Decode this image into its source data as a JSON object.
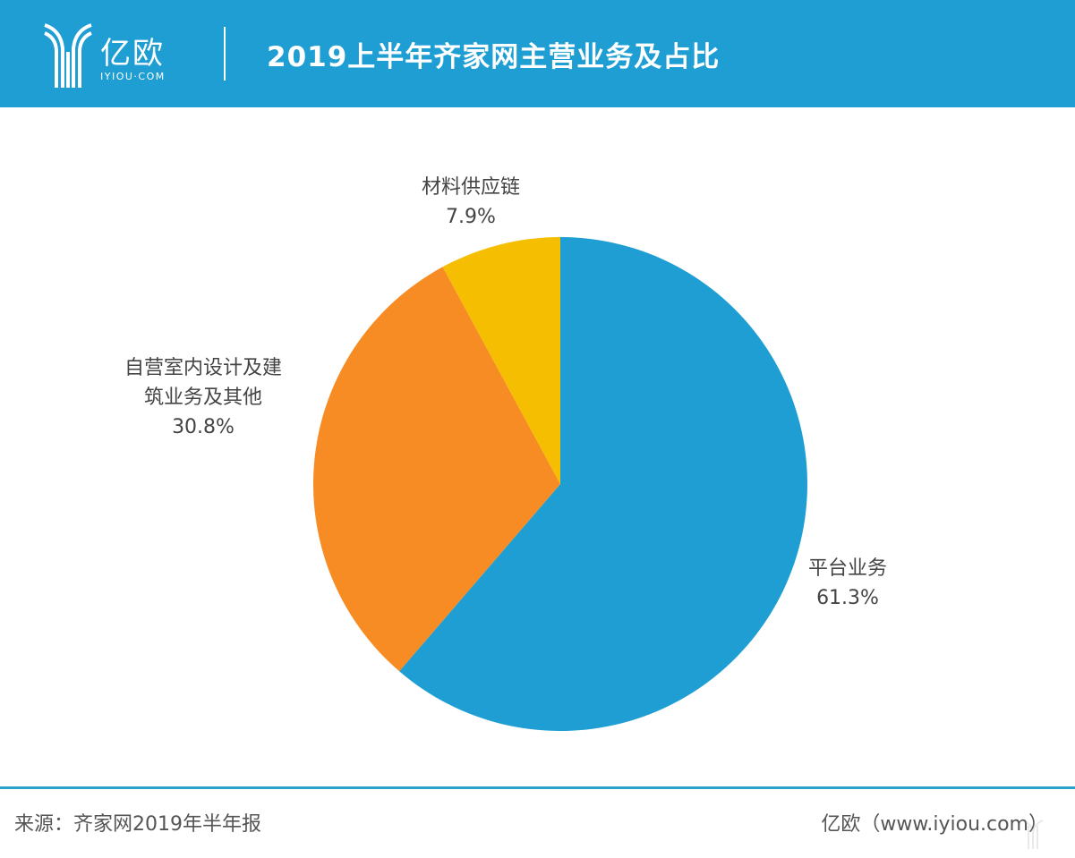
{
  "header": {
    "logo_cn": "亿欧",
    "logo_en": "IYIOU·COM",
    "title": "2019上半年齐家网主营业务及占比",
    "background_color": "#1e9ed3"
  },
  "chart_data": {
    "type": "pie",
    "title": "2019上半年齐家网主营业务及占比",
    "categories": [
      "平台业务",
      "自营室内设计及建筑业务及其他",
      "材料供应链"
    ],
    "values": [
      61.3,
      30.8,
      7.9
    ],
    "unit": "%",
    "colors": [
      "#1e9ed3",
      "#f68c23",
      "#f5be00"
    ],
    "start_angle_deg": 0,
    "direction": "clockwise",
    "labels": [
      {
        "line1": "平台业务",
        "line2": "",
        "value": "61.3%"
      },
      {
        "line1": "自营室内设计及建",
        "line2": "筑业务及其他",
        "value": "30.8%"
      },
      {
        "line1": "材料供应链",
        "line2": "",
        "value": "7.9%"
      }
    ],
    "legend": "none"
  },
  "footer": {
    "source": "来源：齐家网2019年半年报",
    "site": "亿欧（www.iyiou.com）",
    "line_color": "#2a9fc9"
  }
}
